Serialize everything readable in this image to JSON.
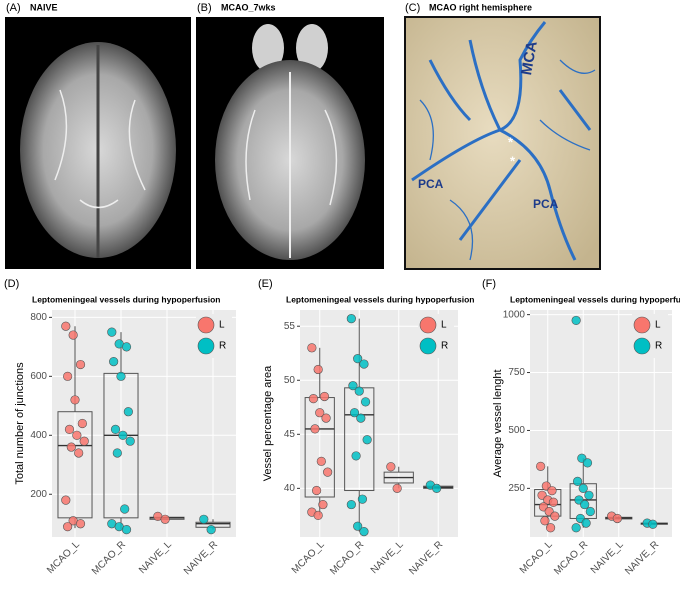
{
  "panels": [
    {
      "letter": "(A)",
      "title": "NAIVE"
    },
    {
      "letter": "(B)",
      "title": "MCAO_7wks"
    },
    {
      "letter": "(C)",
      "title": "MCAO right hemisphere"
    }
  ],
  "panel_c_labels": [
    "MCA",
    "PCA",
    "PCA",
    "*",
    "*"
  ],
  "chart_data": [
    {
      "type": "box",
      "letter": "(D)",
      "title": "Leptomeningeal vessels during  hypoperfusion",
      "ylabel": "Total number of junctions",
      "categories": [
        "MCAO_L",
        "MCAO_R",
        "NAIVE_L",
        "NAIVE_R"
      ],
      "series": [
        {
          "name": "L",
          "color": "#F8766D"
        },
        {
          "name": "R",
          "color": "#00BFC4"
        }
      ],
      "groups": [
        {
          "series": "L",
          "points": [
            770,
            740,
            640,
            600,
            520,
            440,
            420,
            400,
            380,
            360,
            340,
            180,
            110,
            100,
            90
          ],
          "box": [
            85,
            120,
            365,
            480,
            770
          ]
        },
        {
          "series": "R",
          "points": [
            750,
            710,
            700,
            650,
            600,
            480,
            420,
            400,
            380,
            340,
            150,
            100,
            90,
            80
          ],
          "box": [
            80,
            120,
            400,
            610,
            750
          ]
        },
        {
          "series": "L",
          "points": [
            125,
            115
          ],
          "box": [
            113,
            115,
            120,
            122,
            125
          ]
        },
        {
          "series": "R",
          "points": [
            115,
            80
          ],
          "box": [
            80,
            88,
            100,
            105,
            115
          ]
        }
      ],
      "ylim": [
        55,
        825
      ],
      "yticks": [
        200,
        400,
        600,
        800
      ],
      "grid": true,
      "legend": "upper right"
    },
    {
      "type": "box",
      "letter": "(E)",
      "title": "Leptomeningeal vessels during hypoperfusion",
      "ylabel": "Vessel percentage area",
      "categories": [
        "MCAO_L",
        "MCAO_R",
        "NAIVE_L",
        "NAIVE_R"
      ],
      "series": [
        {
          "name": "L",
          "color": "#F8766D"
        },
        {
          "name": "R",
          "color": "#00BFC4"
        }
      ],
      "groups": [
        {
          "series": "L",
          "points": [
            53,
            51,
            48.5,
            48.3,
            47,
            46.5,
            45.5,
            42.5,
            41.5,
            39.8,
            38.5,
            37.8,
            37.5
          ],
          "box": [
            37.5,
            39.2,
            45.5,
            48.4,
            53
          ]
        },
        {
          "series": "R",
          "points": [
            55.7,
            52,
            51.5,
            49.5,
            49,
            48,
            47,
            46.5,
            44.5,
            43,
            39,
            38.5,
            36.5,
            36
          ],
          "box": [
            36,
            39.8,
            46.8,
            49.3,
            55.7
          ]
        },
        {
          "series": "L",
          "points": [
            42,
            40
          ],
          "box": [
            40,
            40.5,
            41,
            41.5,
            42
          ]
        },
        {
          "series": "R",
          "points": [
            40.3,
            40
          ],
          "box": [
            39.9,
            40,
            40.1,
            40.2,
            40.4
          ]
        }
      ],
      "ylim": [
        35.5,
        56.5
      ],
      "yticks": [
        40,
        45,
        50,
        55
      ],
      "grid": true,
      "legend": "upper right"
    },
    {
      "type": "box",
      "letter": "(F)",
      "title": "Leptomeningeal vessels during hypoperfusion",
      "ylabel": "Average vessel lenght",
      "categories": [
        "MCAO_L",
        "MCAO_R",
        "NAIVE_L",
        "NAIVE_R"
      ],
      "series": [
        {
          "name": "L",
          "color": "#F8766D"
        },
        {
          "name": "R",
          "color": "#00BFC4"
        }
      ],
      "groups": [
        {
          "series": "L",
          "points": [
            345,
            260,
            240,
            220,
            200,
            190,
            170,
            150,
            130,
            110,
            80
          ],
          "box": [
            80,
            130,
            180,
            245,
            345
          ]
        },
        {
          "series": "R",
          "points": [
            975,
            380,
            360,
            280,
            250,
            220,
            200,
            180,
            150,
            120,
            100,
            80
          ],
          "box": [
            80,
            120,
            200,
            270,
            380
          ]
        },
        {
          "series": "L",
          "points": [
            130,
            120
          ],
          "box": [
            115,
            118,
            122,
            125,
            130
          ]
        },
        {
          "series": "R",
          "points": [
            100,
            95
          ],
          "box": [
            92,
            95,
            98,
            100,
            102
          ]
        }
      ],
      "ylim": [
        40,
        1020
      ],
      "yticks": [
        250,
        500,
        750,
        1000
      ],
      "grid": true,
      "legend": "upper right"
    }
  ]
}
